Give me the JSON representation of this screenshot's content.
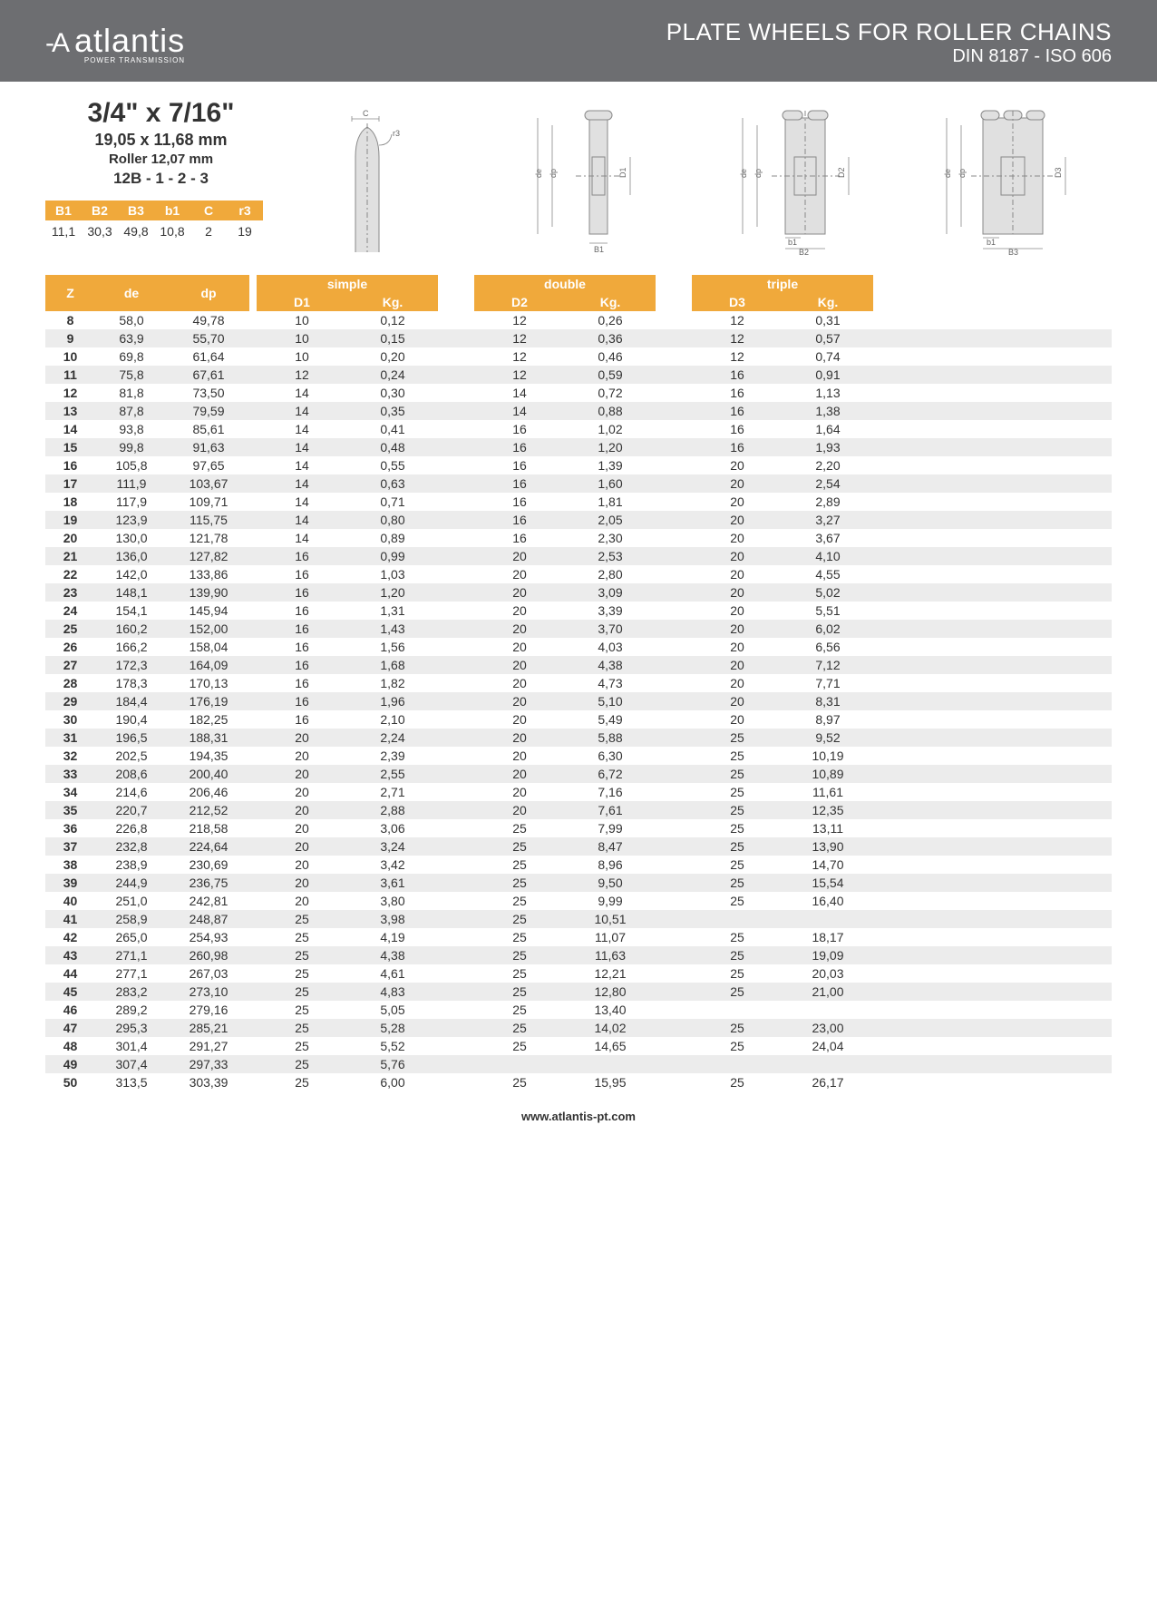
{
  "header": {
    "logo_text": "atlantis",
    "logo_sub": "POWER TRANSMISSION",
    "title_main": "PLATE WHEELS FOR ROLLER CHAINS",
    "title_sub": "DIN 8187 - ISO 606"
  },
  "spec": {
    "inch": "3/4\" x 7/16\"",
    "mm": "19,05 x 11,68 mm",
    "roller": "Roller 12,07 mm",
    "code": "12B - 1 - 2 - 3"
  },
  "small_table": {
    "headers": [
      "B1",
      "B2",
      "B3",
      "b1",
      "C",
      "r3"
    ],
    "values": [
      "11,1",
      "30,3",
      "49,8",
      "10,8",
      "2",
      "19"
    ]
  },
  "diagram_labels": {
    "C": "C",
    "r3": "r3",
    "de": "de",
    "dp": "dp",
    "D1": "D1",
    "D2": "D2",
    "D3": "D3",
    "B1": "B1",
    "B2": "B2",
    "B3": "B3",
    "b1": "b1"
  },
  "columns": {
    "Z": "Z",
    "de": "de",
    "dp": "dp",
    "simple": "simple",
    "double": "double",
    "triple": "triple",
    "D1": "D1",
    "D2": "D2",
    "D3": "D3",
    "Kg": "Kg."
  },
  "rows": [
    {
      "z": "8",
      "de": "58,0",
      "dp": "49,78",
      "d1": "10",
      "kg1": "0,12",
      "d2": "12",
      "kg2": "0,26",
      "d3": "12",
      "kg3": "0,31"
    },
    {
      "z": "9",
      "de": "63,9",
      "dp": "55,70",
      "d1": "10",
      "kg1": "0,15",
      "d2": "12",
      "kg2": "0,36",
      "d3": "12",
      "kg3": "0,57"
    },
    {
      "z": "10",
      "de": "69,8",
      "dp": "61,64",
      "d1": "10",
      "kg1": "0,20",
      "d2": "12",
      "kg2": "0,46",
      "d3": "12",
      "kg3": "0,74"
    },
    {
      "z": "11",
      "de": "75,8",
      "dp": "67,61",
      "d1": "12",
      "kg1": "0,24",
      "d2": "12",
      "kg2": "0,59",
      "d3": "16",
      "kg3": "0,91"
    },
    {
      "z": "12",
      "de": "81,8",
      "dp": "73,50",
      "d1": "14",
      "kg1": "0,30",
      "d2": "14",
      "kg2": "0,72",
      "d3": "16",
      "kg3": "1,13"
    },
    {
      "z": "13",
      "de": "87,8",
      "dp": "79,59",
      "d1": "14",
      "kg1": "0,35",
      "d2": "14",
      "kg2": "0,88",
      "d3": "16",
      "kg3": "1,38"
    },
    {
      "z": "14",
      "de": "93,8",
      "dp": "85,61",
      "d1": "14",
      "kg1": "0,41",
      "d2": "16",
      "kg2": "1,02",
      "d3": "16",
      "kg3": "1,64"
    },
    {
      "z": "15",
      "de": "99,8",
      "dp": "91,63",
      "d1": "14",
      "kg1": "0,48",
      "d2": "16",
      "kg2": "1,20",
      "d3": "16",
      "kg3": "1,93"
    },
    {
      "z": "16",
      "de": "105,8",
      "dp": "97,65",
      "d1": "14",
      "kg1": "0,55",
      "d2": "16",
      "kg2": "1,39",
      "d3": "20",
      "kg3": "2,20"
    },
    {
      "z": "17",
      "de": "111,9",
      "dp": "103,67",
      "d1": "14",
      "kg1": "0,63",
      "d2": "16",
      "kg2": "1,60",
      "d3": "20",
      "kg3": "2,54"
    },
    {
      "z": "18",
      "de": "117,9",
      "dp": "109,71",
      "d1": "14",
      "kg1": "0,71",
      "d2": "16",
      "kg2": "1,81",
      "d3": "20",
      "kg3": "2,89"
    },
    {
      "z": "19",
      "de": "123,9",
      "dp": "115,75",
      "d1": "14",
      "kg1": "0,80",
      "d2": "16",
      "kg2": "2,05",
      "d3": "20",
      "kg3": "3,27"
    },
    {
      "z": "20",
      "de": "130,0",
      "dp": "121,78",
      "d1": "14",
      "kg1": "0,89",
      "d2": "16",
      "kg2": "2,30",
      "d3": "20",
      "kg3": "3,67"
    },
    {
      "z": "21",
      "de": "136,0",
      "dp": "127,82",
      "d1": "16",
      "kg1": "0,99",
      "d2": "20",
      "kg2": "2,53",
      "d3": "20",
      "kg3": "4,10"
    },
    {
      "z": "22",
      "de": "142,0",
      "dp": "133,86",
      "d1": "16",
      "kg1": "1,03",
      "d2": "20",
      "kg2": "2,80",
      "d3": "20",
      "kg3": "4,55"
    },
    {
      "z": "23",
      "de": "148,1",
      "dp": "139,90",
      "d1": "16",
      "kg1": "1,20",
      "d2": "20",
      "kg2": "3,09",
      "d3": "20",
      "kg3": "5,02"
    },
    {
      "z": "24",
      "de": "154,1",
      "dp": "145,94",
      "d1": "16",
      "kg1": "1,31",
      "d2": "20",
      "kg2": "3,39",
      "d3": "20",
      "kg3": "5,51"
    },
    {
      "z": "25",
      "de": "160,2",
      "dp": "152,00",
      "d1": "16",
      "kg1": "1,43",
      "d2": "20",
      "kg2": "3,70",
      "d3": "20",
      "kg3": "6,02"
    },
    {
      "z": "26",
      "de": "166,2",
      "dp": "158,04",
      "d1": "16",
      "kg1": "1,56",
      "d2": "20",
      "kg2": "4,03",
      "d3": "20",
      "kg3": "6,56"
    },
    {
      "z": "27",
      "de": "172,3",
      "dp": "164,09",
      "d1": "16",
      "kg1": "1,68",
      "d2": "20",
      "kg2": "4,38",
      "d3": "20",
      "kg3": "7,12"
    },
    {
      "z": "28",
      "de": "178,3",
      "dp": "170,13",
      "d1": "16",
      "kg1": "1,82",
      "d2": "20",
      "kg2": "4,73",
      "d3": "20",
      "kg3": "7,71"
    },
    {
      "z": "29",
      "de": "184,4",
      "dp": "176,19",
      "d1": "16",
      "kg1": "1,96",
      "d2": "20",
      "kg2": "5,10",
      "d3": "20",
      "kg3": "8,31"
    },
    {
      "z": "30",
      "de": "190,4",
      "dp": "182,25",
      "d1": "16",
      "kg1": "2,10",
      "d2": "20",
      "kg2": "5,49",
      "d3": "20",
      "kg3": "8,97"
    },
    {
      "z": "31",
      "de": "196,5",
      "dp": "188,31",
      "d1": "20",
      "kg1": "2,24",
      "d2": "20",
      "kg2": "5,88",
      "d3": "25",
      "kg3": "9,52"
    },
    {
      "z": "32",
      "de": "202,5",
      "dp": "194,35",
      "d1": "20",
      "kg1": "2,39",
      "d2": "20",
      "kg2": "6,30",
      "d3": "25",
      "kg3": "10,19"
    },
    {
      "z": "33",
      "de": "208,6",
      "dp": "200,40",
      "d1": "20",
      "kg1": "2,55",
      "d2": "20",
      "kg2": "6,72",
      "d3": "25",
      "kg3": "10,89"
    },
    {
      "z": "34",
      "de": "214,6",
      "dp": "206,46",
      "d1": "20",
      "kg1": "2,71",
      "d2": "20",
      "kg2": "7,16",
      "d3": "25",
      "kg3": "11,61"
    },
    {
      "z": "35",
      "de": "220,7",
      "dp": "212,52",
      "d1": "20",
      "kg1": "2,88",
      "d2": "20",
      "kg2": "7,61",
      "d3": "25",
      "kg3": "12,35"
    },
    {
      "z": "36",
      "de": "226,8",
      "dp": "218,58",
      "d1": "20",
      "kg1": "3,06",
      "d2": "25",
      "kg2": "7,99",
      "d3": "25",
      "kg3": "13,11"
    },
    {
      "z": "37",
      "de": "232,8",
      "dp": "224,64",
      "d1": "20",
      "kg1": "3,24",
      "d2": "25",
      "kg2": "8,47",
      "d3": "25",
      "kg3": "13,90"
    },
    {
      "z": "38",
      "de": "238,9",
      "dp": "230,69",
      "d1": "20",
      "kg1": "3,42",
      "d2": "25",
      "kg2": "8,96",
      "d3": "25",
      "kg3": "14,70"
    },
    {
      "z": "39",
      "de": "244,9",
      "dp": "236,75",
      "d1": "20",
      "kg1": "3,61",
      "d2": "25",
      "kg2": "9,50",
      "d3": "25",
      "kg3": "15,54"
    },
    {
      "z": "40",
      "de": "251,0",
      "dp": "242,81",
      "d1": "20",
      "kg1": "3,80",
      "d2": "25",
      "kg2": "9,99",
      "d3": "25",
      "kg3": "16,40"
    },
    {
      "z": "41",
      "de": "258,9",
      "dp": "248,87",
      "d1": "25",
      "kg1": "3,98",
      "d2": "25",
      "kg2": "10,51",
      "d3": "",
      "kg3": ""
    },
    {
      "z": "42",
      "de": "265,0",
      "dp": "254,93",
      "d1": "25",
      "kg1": "4,19",
      "d2": "25",
      "kg2": "11,07",
      "d3": "25",
      "kg3": "18,17"
    },
    {
      "z": "43",
      "de": "271,1",
      "dp": "260,98",
      "d1": "25",
      "kg1": "4,38",
      "d2": "25",
      "kg2": "11,63",
      "d3": "25",
      "kg3": "19,09"
    },
    {
      "z": "44",
      "de": "277,1",
      "dp": "267,03",
      "d1": "25",
      "kg1": "4,61",
      "d2": "25",
      "kg2": "12,21",
      "d3": "25",
      "kg3": "20,03"
    },
    {
      "z": "45",
      "de": "283,2",
      "dp": "273,10",
      "d1": "25",
      "kg1": "4,83",
      "d2": "25",
      "kg2": "12,80",
      "d3": "25",
      "kg3": "21,00"
    },
    {
      "z": "46",
      "de": "289,2",
      "dp": "279,16",
      "d1": "25",
      "kg1": "5,05",
      "d2": "25",
      "kg2": "13,40",
      "d3": "",
      "kg3": ""
    },
    {
      "z": "47",
      "de": "295,3",
      "dp": "285,21",
      "d1": "25",
      "kg1": "5,28",
      "d2": "25",
      "kg2": "14,02",
      "d3": "25",
      "kg3": "23,00"
    },
    {
      "z": "48",
      "de": "301,4",
      "dp": "291,27",
      "d1": "25",
      "kg1": "5,52",
      "d2": "25",
      "kg2": "14,65",
      "d3": "25",
      "kg3": "24,04"
    },
    {
      "z": "49",
      "de": "307,4",
      "dp": "297,33",
      "d1": "25",
      "kg1": "5,76",
      "d2": "",
      "kg2": "",
      "d3": "",
      "kg3": ""
    },
    {
      "z": "50",
      "de": "313,5",
      "dp": "303,39",
      "d1": "25",
      "kg1": "6,00",
      "d2": "25",
      "kg2": "15,95",
      "d3": "25",
      "kg3": "26,17"
    }
  ],
  "footer": "www.atlantis-pt.com",
  "colors": {
    "header_bg": "#6d6e71",
    "orange": "#f0a93b",
    "row_alt": "#ececec",
    "text": "#333333"
  }
}
